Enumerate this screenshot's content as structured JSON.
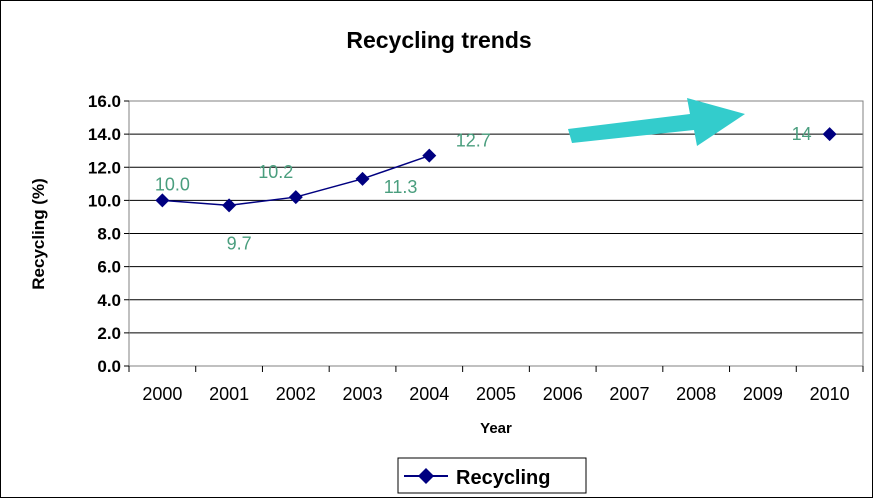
{
  "chart_data": {
    "type": "line",
    "title": "Recycling trends",
    "xlabel": "Year",
    "ylabel": "Recycling (%)",
    "categories": [
      "2000",
      "2001",
      "2002",
      "2003",
      "2004",
      "2005",
      "2006",
      "2007",
      "2008",
      "2009",
      "2010"
    ],
    "ylim": [
      0,
      16
    ],
    "yticks": [
      "0.0",
      "2.0",
      "4.0",
      "6.0",
      "8.0",
      "10.0",
      "12.0",
      "14.0",
      "16.0"
    ],
    "grid": true,
    "legend_position": "bottom",
    "series": [
      {
        "name": "Recycling",
        "color": "#000080",
        "points": [
          {
            "x": "2000",
            "y": 10.0,
            "label": "10.0"
          },
          {
            "x": "2001",
            "y": 9.7,
            "label": "9.7"
          },
          {
            "x": "2002",
            "y": 10.2,
            "label": "10.2"
          },
          {
            "x": "2003",
            "y": 11.3,
            "label": "11.3"
          },
          {
            "x": "2004",
            "y": 12.7,
            "label": "12.7"
          },
          {
            "x": "2010",
            "y": 14,
            "label": "14"
          }
        ],
        "connected_through": "2004"
      }
    ],
    "annotations": [
      {
        "type": "arrow",
        "color": "#33cccc",
        "direction": "up-right"
      }
    ]
  }
}
